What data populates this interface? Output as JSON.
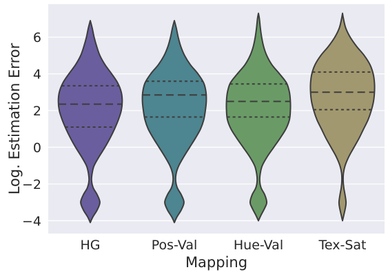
{
  "chart_data": {
    "type": "violin",
    "title": "",
    "xlabel": "Mapping",
    "ylabel": "Log. Estimation Error",
    "ylim": [
      -4.7,
      7.8
    ],
    "yticks": [
      -4,
      -2,
      0,
      2,
      4,
      6
    ],
    "ytick_labels": [
      "−4",
      "−2",
      "0",
      "2",
      "4",
      "6"
    ],
    "grid": true,
    "categories": [
      "HG",
      "Pos-Val",
      "Hue-Val",
      "Tex-Sat"
    ],
    "colors": [
      "#6a5e9e",
      "#4d8590",
      "#6a9b66",
      "#a2986f"
    ],
    "background": "#eaeaf2",
    "line_color": "#3d3d3d",
    "series": [
      {
        "category": "HG",
        "min": -4.1,
        "max": 6.9,
        "quartiles": [
          1.1,
          2.35,
          3.35
        ],
        "profile": [
          [
            -4.1,
            0
          ],
          [
            -3.8,
            0.08
          ],
          [
            -3.4,
            0.22
          ],
          [
            -3.0,
            0.3
          ],
          [
            -2.6,
            0.22
          ],
          [
            -2.2,
            0.09
          ],
          [
            -1.8,
            0.04
          ],
          [
            -1.4,
            0.06
          ],
          [
            -1.0,
            0.12
          ],
          [
            -0.5,
            0.28
          ],
          [
            0.0,
            0.46
          ],
          [
            0.5,
            0.62
          ],
          [
            1.0,
            0.76
          ],
          [
            1.5,
            0.88
          ],
          [
            2.0,
            0.97
          ],
          [
            2.5,
            1.0
          ],
          [
            3.0,
            0.97
          ],
          [
            3.5,
            0.86
          ],
          [
            4.0,
            0.67
          ],
          [
            4.5,
            0.46
          ],
          [
            5.0,
            0.3
          ],
          [
            5.5,
            0.2
          ],
          [
            6.0,
            0.12
          ],
          [
            6.5,
            0.06
          ],
          [
            6.9,
            0
          ]
        ]
      },
      {
        "category": "Pos-Val",
        "min": -4.1,
        "max": 6.9,
        "quartiles": [
          1.65,
          2.85,
          3.6
        ],
        "profile": [
          [
            -4.1,
            0
          ],
          [
            -3.8,
            0.08
          ],
          [
            -3.4,
            0.22
          ],
          [
            -3.0,
            0.3
          ],
          [
            -2.6,
            0.22
          ],
          [
            -2.2,
            0.09
          ],
          [
            -1.8,
            0.04
          ],
          [
            -1.4,
            0.06
          ],
          [
            -1.0,
            0.14
          ],
          [
            -0.5,
            0.3
          ],
          [
            0.0,
            0.48
          ],
          [
            0.5,
            0.66
          ],
          [
            1.0,
            0.82
          ],
          [
            1.5,
            0.92
          ],
          [
            2.0,
            0.97
          ],
          [
            2.5,
            1.0
          ],
          [
            3.0,
            0.99
          ],
          [
            3.5,
            0.92
          ],
          [
            4.0,
            0.74
          ],
          [
            4.5,
            0.5
          ],
          [
            5.0,
            0.32
          ],
          [
            5.5,
            0.2
          ],
          [
            6.0,
            0.12
          ],
          [
            6.5,
            0.06
          ],
          [
            6.9,
            0
          ]
        ]
      },
      {
        "category": "Hue-Val",
        "min": -4.0,
        "max": 7.3,
        "quartiles": [
          1.65,
          2.5,
          3.45
        ],
        "profile": [
          [
            -4.0,
            0
          ],
          [
            -3.7,
            0.08
          ],
          [
            -3.3,
            0.2
          ],
          [
            -3.0,
            0.26
          ],
          [
            -2.6,
            0.2
          ],
          [
            -2.2,
            0.08
          ],
          [
            -1.8,
            0.04
          ],
          [
            -1.4,
            0.06
          ],
          [
            -1.0,
            0.12
          ],
          [
            -0.5,
            0.28
          ],
          [
            0.0,
            0.48
          ],
          [
            0.5,
            0.68
          ],
          [
            1.0,
            0.86
          ],
          [
            1.5,
            0.97
          ],
          [
            2.0,
            1.0
          ],
          [
            2.5,
            1.0
          ],
          [
            3.0,
            0.97
          ],
          [
            3.5,
            0.88
          ],
          [
            4.0,
            0.66
          ],
          [
            4.5,
            0.42
          ],
          [
            5.0,
            0.26
          ],
          [
            5.5,
            0.16
          ],
          [
            6.0,
            0.1
          ],
          [
            6.5,
            0.06
          ],
          [
            7.0,
            0.03
          ],
          [
            7.3,
            0
          ]
        ]
      },
      {
        "category": "Tex-Sat",
        "min": -4.0,
        "max": 7.3,
        "quartiles": [
          2.05,
          3.0,
          4.1
        ],
        "profile": [
          [
            -4.0,
            0
          ],
          [
            -3.7,
            0.04
          ],
          [
            -3.3,
            0.09
          ],
          [
            -3.0,
            0.11
          ],
          [
            -2.6,
            0.08
          ],
          [
            -2.2,
            0.04
          ],
          [
            -1.8,
            0.02
          ],
          [
            -1.4,
            0.03
          ],
          [
            -1.0,
            0.08
          ],
          [
            -0.5,
            0.2
          ],
          [
            0.0,
            0.36
          ],
          [
            0.5,
            0.52
          ],
          [
            1.0,
            0.66
          ],
          [
            1.5,
            0.8
          ],
          [
            2.0,
            0.9
          ],
          [
            2.5,
            0.97
          ],
          [
            3.0,
            1.0
          ],
          [
            3.5,
            1.0
          ],
          [
            4.0,
            0.96
          ],
          [
            4.5,
            0.86
          ],
          [
            5.0,
            0.68
          ],
          [
            5.5,
            0.44
          ],
          [
            6.0,
            0.24
          ],
          [
            6.5,
            0.1
          ],
          [
            7.0,
            0.03
          ],
          [
            7.3,
            0
          ]
        ]
      }
    ]
  }
}
